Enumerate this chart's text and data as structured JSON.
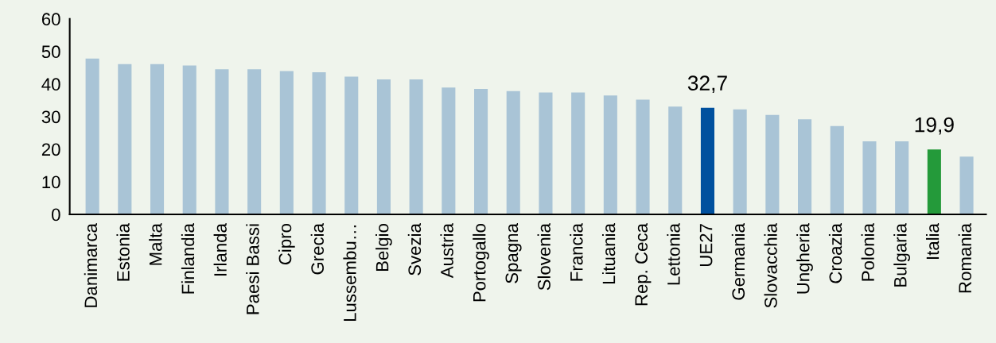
{
  "chart_data": {
    "type": "bar",
    "categories": [
      "Danimarca",
      "Estonia",
      "Malta",
      "Finlandia",
      "Irlanda",
      "Paesi Bassi",
      "Cipro",
      "Grecia",
      "Lussembu…",
      "Belgio",
      "Svezia",
      "Austria",
      "Portogallo",
      "Spagna",
      "Slovenia",
      "Francia",
      "Lituania",
      "Rep. Ceca",
      "Lettonia",
      "UE27",
      "Germania",
      "Slovacchia",
      "Ungheria",
      "Croazia",
      "Polonia",
      "Bulgaria",
      "Italia",
      "Romania"
    ],
    "values": [
      47.8,
      46.1,
      46.1,
      45.7,
      44.5,
      44.5,
      44.0,
      43.6,
      42.3,
      41.4,
      41.4,
      38.9,
      38.5,
      37.8,
      37.4,
      37.4,
      36.5,
      35.2,
      33.1,
      32.7,
      32.2,
      30.5,
      29.2,
      27.1,
      22.4,
      22.4,
      19.9,
      17.7
    ],
    "colors": [
      "#a9c4d6",
      "#a9c4d6",
      "#a9c4d6",
      "#a9c4d6",
      "#a9c4d6",
      "#a9c4d6",
      "#a9c4d6",
      "#a9c4d6",
      "#a9c4d6",
      "#a9c4d6",
      "#a9c4d6",
      "#a9c4d6",
      "#a9c4d6",
      "#a9c4d6",
      "#a9c4d6",
      "#a9c4d6",
      "#a9c4d6",
      "#a9c4d6",
      "#a9c4d6",
      "#00509e",
      "#a9c4d6",
      "#a9c4d6",
      "#a9c4d6",
      "#a9c4d6",
      "#a9c4d6",
      "#a9c4d6",
      "#249a3a",
      "#a9c4d6"
    ],
    "value_labels": [
      null,
      null,
      null,
      null,
      null,
      null,
      null,
      null,
      null,
      null,
      null,
      null,
      null,
      null,
      null,
      null,
      null,
      null,
      null,
      "32,7",
      null,
      null,
      null,
      null,
      null,
      null,
      "19,9",
      null
    ],
    "ylim": [
      0,
      60
    ],
    "yticks": [
      0,
      10,
      20,
      30,
      40,
      50,
      60
    ],
    "grid": false,
    "legend": false
  }
}
